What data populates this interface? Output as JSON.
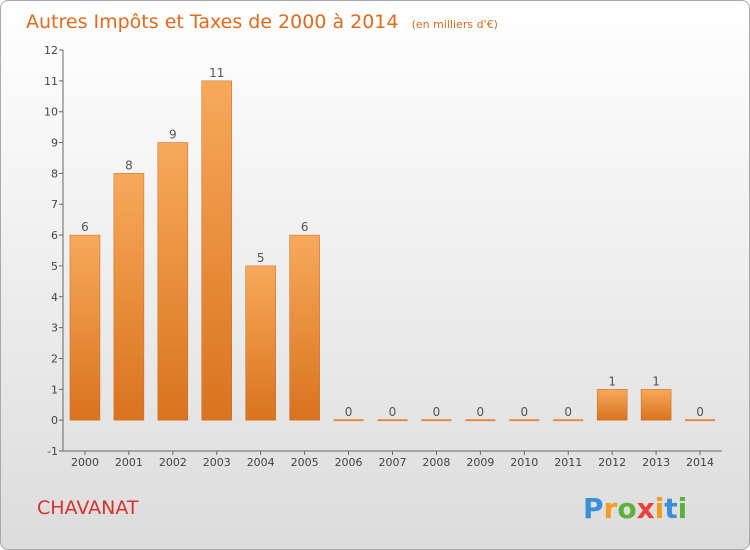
{
  "chart_data": {
    "type": "bar",
    "title": "Autres Impôts et Taxes de 2000 à 2014",
    "subtitle": "(en milliers d'€)",
    "categories": [
      "2000",
      "2001",
      "2002",
      "2003",
      "2004",
      "2005",
      "2006",
      "2007",
      "2008",
      "2009",
      "2010",
      "2011",
      "2012",
      "2013",
      "2014"
    ],
    "values": [
      6,
      8,
      9,
      11,
      5,
      6,
      0,
      0,
      0,
      0,
      0,
      0,
      1,
      1,
      0
    ],
    "ylim": [
      -1,
      12
    ],
    "yticks": [
      "-1",
      "0",
      "1",
      "2",
      "3",
      "4",
      "5",
      "6",
      "7",
      "8",
      "9",
      "10",
      "11",
      "12"
    ],
    "grid": false,
    "bar_color": "#f28c38"
  },
  "commune": "CHAVANAT",
  "logo": {
    "letters": [
      "P",
      "r",
      "o",
      "x",
      "i",
      "t",
      "i"
    ],
    "colors": [
      "#3a8fd8",
      "#f29b1f",
      "#5cb13c",
      "#e8413c",
      "#f29b1f",
      "#3a8fd8",
      "#5cb13c"
    ]
  }
}
